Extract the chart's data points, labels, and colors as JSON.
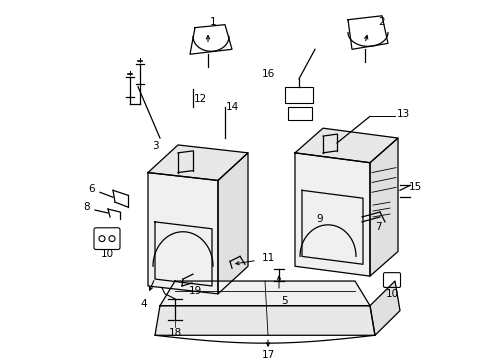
{
  "bg_color": "#ffffff",
  "line_color": "#000000",
  "figsize": [
    4.89,
    3.6
  ],
  "dpi": 100,
  "lw": 0.9,
  "fontsize": 7.5
}
